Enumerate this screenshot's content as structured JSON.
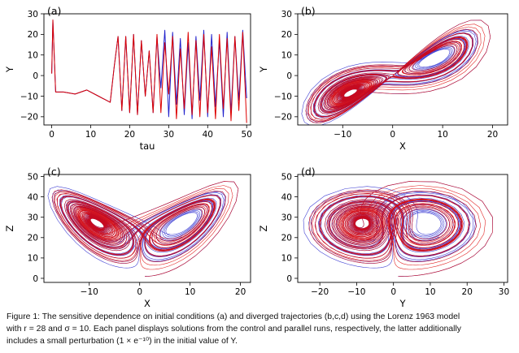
{
  "caption": {
    "line1": "Figure 1:  The sensitive dependence on initial conditions (a) and diverged trajectories (b,c,d) using the Lorenz 1963 model",
    "line2": "with r = 28 and σ = 10. Each panel displays solutions from the control and parallel runs, respectively, the latter additionally",
    "line3": "includes a small perturbation (1 × e⁻¹⁰) in the initial value of Y."
  },
  "colors": {
    "control": "#2222cc",
    "perturbed": "#dd0000",
    "axis": "#000000"
  },
  "chart_data": [
    {
      "panel": "(a)",
      "type": "line",
      "xlabel": "tau",
      "ylabel": "Y",
      "xlim": [
        -2,
        51
      ],
      "ylim": [
        -24,
        30
      ],
      "xticks": [
        0,
        10,
        20,
        30,
        40,
        50
      ],
      "yticks": [
        -20,
        -10,
        0,
        10,
        20,
        30
      ],
      "series": [
        {
          "color": "control",
          "x": [
            0,
            0.3,
            1,
            3,
            6,
            9,
            12,
            15,
            16,
            17,
            18,
            19,
            20,
            21,
            22,
            23,
            24,
            25,
            26,
            27,
            28,
            29,
            30,
            31,
            32,
            33,
            34,
            35,
            36,
            37,
            38,
            39,
            40,
            41,
            42,
            43,
            44,
            45,
            46,
            47,
            48,
            49,
            50
          ],
          "y": [
            1,
            27,
            -8,
            -8,
            -9,
            -7,
            -10,
            -13,
            4,
            19,
            -17,
            19,
            -18,
            20,
            -19,
            17,
            -10,
            12,
            -18,
            19,
            -6,
            22,
            -20,
            21,
            -14,
            18,
            -19,
            16,
            -21,
            19,
            -12,
            22,
            -20,
            20,
            -15,
            17,
            -20,
            21,
            -18,
            19,
            -12,
            22,
            -11
          ]
        },
        {
          "color": "perturbed",
          "x": [
            0,
            0.3,
            1,
            3,
            6,
            9,
            12,
            15,
            16,
            17,
            18,
            19,
            20,
            21,
            22,
            23,
            24,
            25,
            26,
            27,
            28,
            29,
            30,
            31,
            32,
            33,
            34,
            35,
            36,
            37,
            38,
            39,
            40,
            41,
            42,
            43,
            44,
            45,
            46,
            47,
            48,
            49,
            50
          ],
          "y": [
            1,
            27,
            -8,
            -8,
            -9,
            -7,
            -10,
            -13,
            4,
            19,
            -17,
            19,
            -18,
            20,
            -19,
            17,
            -10,
            12,
            -18,
            20,
            -18,
            16,
            -9,
            19,
            -21,
            13,
            -16,
            21,
            -19,
            17,
            -20,
            20,
            -18,
            14,
            -21,
            20,
            -16,
            18,
            -22,
            19,
            -17,
            21,
            -23
          ]
        }
      ]
    },
    {
      "panel": "(b)",
      "type": "line",
      "xlabel": "X",
      "ylabel": "Y",
      "xlim": [
        -19,
        23
      ],
      "ylim": [
        -24,
        30
      ],
      "xticks": [
        -10,
        0,
        10,
        20
      ],
      "yticks": [
        -20,
        -10,
        0,
        10,
        20,
        30
      ],
      "attractor": {
        "x_var": "x",
        "y_var": "y"
      }
    },
    {
      "panel": "(c)",
      "type": "line",
      "xlabel": "X",
      "ylabel": "Z",
      "xlim": [
        -19,
        22
      ],
      "ylim": [
        -2,
        51
      ],
      "xticks": [
        -10,
        0,
        10,
        20
      ],
      "yticks": [
        0,
        10,
        20,
        30,
        40,
        50
      ],
      "attractor": {
        "x_var": "x",
        "y_var": "z"
      }
    },
    {
      "panel": "(d)",
      "type": "line",
      "xlabel": "Y",
      "ylabel": "Z",
      "xlim": [
        -26,
        31
      ],
      "ylim": [
        -2,
        51
      ],
      "xticks": [
        -20,
        -10,
        0,
        10,
        20,
        30
      ],
      "yticks": [
        0,
        10,
        20,
        30,
        40,
        50
      ],
      "attractor": {
        "x_var": "y",
        "y_var": "z"
      }
    }
  ]
}
